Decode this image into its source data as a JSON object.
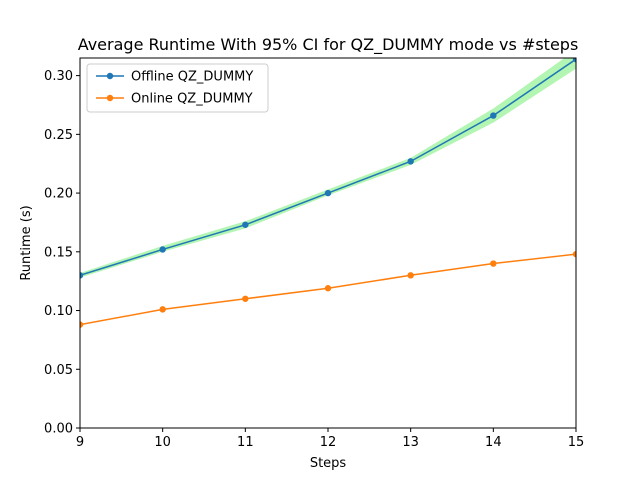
{
  "chart_data": {
    "type": "line",
    "title": "Average Runtime With 95% CI for QZ_DUMMY mode vs #steps",
    "xlabel": "Steps",
    "ylabel": "Runtime (s)",
    "xlim": [
      9,
      15
    ],
    "ylim": [
      0,
      0.315
    ],
    "x": [
      9,
      10,
      11,
      12,
      13,
      14,
      15
    ],
    "xticks": [
      "9",
      "10",
      "11",
      "12",
      "13",
      "14",
      "15"
    ],
    "yticks": [
      "0.00",
      "0.05",
      "0.10",
      "0.15",
      "0.20",
      "0.25",
      "0.30"
    ],
    "yticks_values": [
      0.0,
      0.05,
      0.1,
      0.15,
      0.2,
      0.25,
      0.3
    ],
    "grid": false,
    "legend_position": "upper-left",
    "series": [
      {
        "name": "Offline QZ_DUMMY",
        "color": "#1f77b4",
        "values": [
          0.13,
          0.152,
          0.173,
          0.2,
          0.227,
          0.266,
          0.314
        ],
        "ci_lower": [
          0.128,
          0.15,
          0.17,
          0.198,
          0.224,
          0.26,
          0.306
        ],
        "ci_upper": [
          0.132,
          0.155,
          0.176,
          0.203,
          0.23,
          0.272,
          0.322
        ],
        "ci_color": "#b3f5b3"
      },
      {
        "name": "Online QZ_DUMMY",
        "color": "#ff7f0e",
        "values": [
          0.088,
          0.101,
          0.11,
          0.119,
          0.13,
          0.14,
          0.148
        ]
      }
    ]
  }
}
